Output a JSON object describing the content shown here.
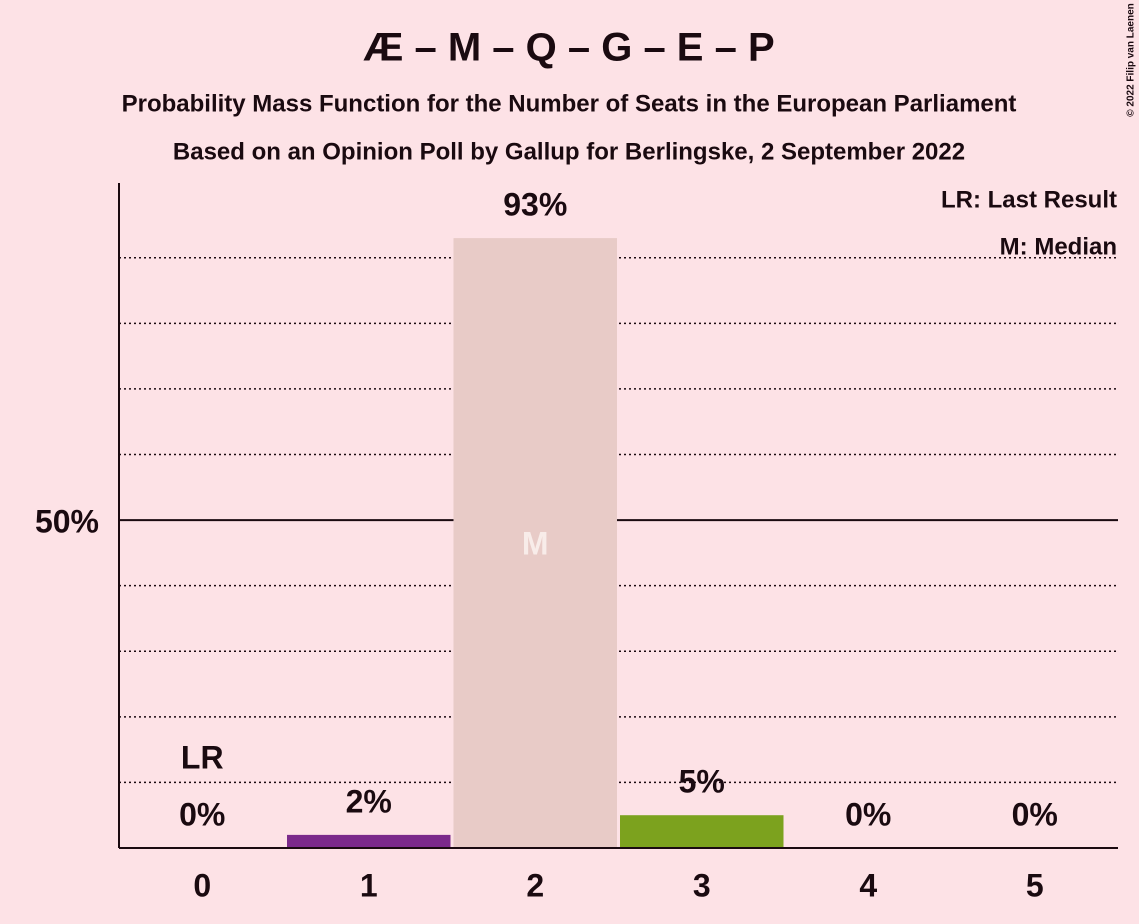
{
  "chart_data": {
    "type": "bar",
    "title": "Æ – M – Q – G – E – P",
    "subtitles": [
      "Probability Mass Function for the Number of Seats in the European Parliament",
      "Based on an Opinion Poll by Gallup for Berlingske, 2 September 2022"
    ],
    "categories": [
      "0",
      "1",
      "2",
      "3",
      "4",
      "5"
    ],
    "values": [
      0,
      2,
      93,
      5,
      0,
      0
    ],
    "value_labels": [
      "0%",
      "2%",
      "93%",
      "5%",
      "0%",
      "0%"
    ],
    "colors": [
      "#7b2a8b",
      "#7b2a8b",
      "#e8cbc7",
      "#7ca21e",
      "#7ca21e",
      "#7ca21e"
    ],
    "ylim": [
      0,
      101.4
    ],
    "yticks": [
      {
        "value": 50,
        "label": "50%"
      }
    ],
    "minor_yticks": [
      10,
      20,
      30,
      40,
      60,
      70,
      80,
      90
    ],
    "annotations": [
      {
        "index": 0,
        "text": "LR"
      },
      {
        "index": 2,
        "text": "M"
      }
    ],
    "legend": [
      "LR: Last Result",
      "M: Median"
    ],
    "credit": "© 2022 Filip van Laenen"
  }
}
